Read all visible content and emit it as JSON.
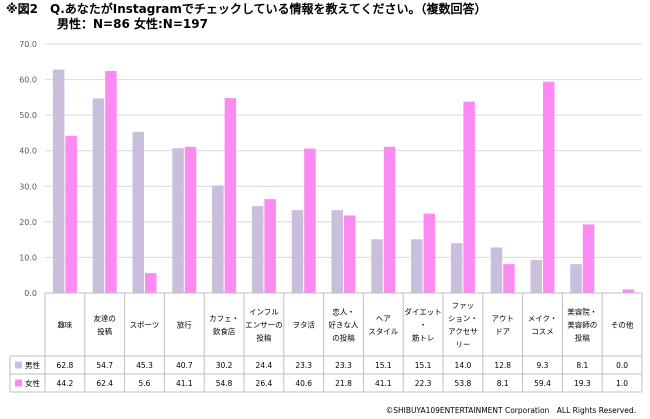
{
  "title": {
    "line1": "※図2　Q.あなたがInstagramでチェックしている情報を教えてください。（複数回答）",
    "line2": "男性：N=86 女性:N=197"
  },
  "footer": "©SHIBUYA109ENTERTAINMENT Corporation　ALL Rights Reserved.",
  "colors": {
    "male": "#c9bedb",
    "female": "#fb8bf3",
    "grid": "#d9d9d9",
    "border": "#bfbfbf"
  },
  "chart_data": {
    "type": "bar",
    "yticks": [
      "0.0",
      "10.0",
      "20.0",
      "30.0",
      "40.0",
      "50.0",
      "60.0",
      "70.0"
    ],
    "ylim": [
      0,
      70
    ],
    "grid": true,
    "categories": [
      [
        "趣味"
      ],
      [
        "友達の",
        "投稿"
      ],
      [
        "スポーツ"
      ],
      [
        "旅行"
      ],
      [
        "カフェ・",
        "飲食店"
      ],
      [
        "インフル",
        "エンサーの",
        "投稿"
      ],
      [
        "ヲタ活"
      ],
      [
        "恋人・",
        "好きな人",
        "の投稿"
      ],
      [
        "ヘア",
        "スタイル"
      ],
      [
        "ダイエット",
        "・",
        "筋トレ"
      ],
      [
        "ファッ",
        "ション・",
        "アクセサ",
        "リー"
      ],
      [
        "アウト",
        "ドア"
      ],
      [
        "メイク・",
        "コスメ"
      ],
      [
        "美容院・",
        "美容師の",
        "投稿"
      ],
      [
        "その他"
      ]
    ],
    "series": [
      {
        "name": "男性",
        "values": [
          62.8,
          54.7,
          45.3,
          40.7,
          30.2,
          24.4,
          23.3,
          23.3,
          15.1,
          15.1,
          14.0,
          12.8,
          9.3,
          8.1,
          0.0
        ],
        "labels": [
          "62.8",
          "54.7",
          "45.3",
          "40.7",
          "30.2",
          "24.4",
          "23.3",
          "23.3",
          "15.1",
          "15.1",
          "14.0",
          "12.8",
          "9.3",
          "8.1",
          "0.0"
        ]
      },
      {
        "name": "女性",
        "values": [
          44.2,
          62.4,
          5.6,
          41.1,
          54.8,
          26.4,
          40.6,
          21.8,
          41.1,
          22.3,
          53.8,
          8.1,
          59.4,
          19.3,
          1.0
        ],
        "labels": [
          "44.2",
          "62.4",
          "5.6",
          "41.1",
          "54.8",
          "26.4",
          "40.6",
          "21.8",
          "41.1",
          "22.3",
          "53.8",
          "8.1",
          "59.4",
          "19.3",
          "1.0"
        ]
      }
    ]
  }
}
